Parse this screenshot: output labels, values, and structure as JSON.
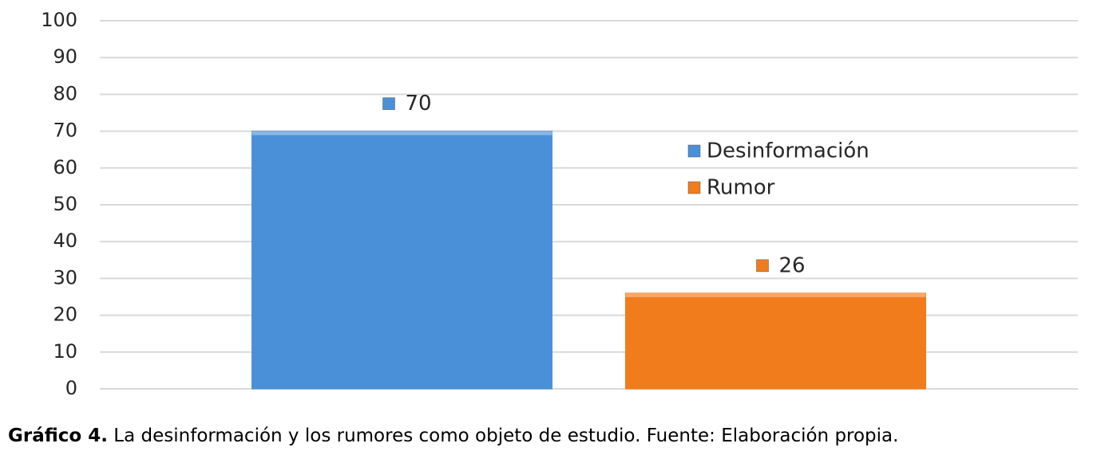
{
  "chart_data": {
    "type": "bar",
    "categories": [
      null
    ],
    "series": [
      {
        "name": "Desinformación",
        "color": "#4a90d9",
        "values": [
          70
        ]
      },
      {
        "name": "Rumor",
        "color": "#f07c1c",
        "values": [
          26
        ]
      }
    ],
    "ylim": [
      0,
      100
    ],
    "yticks": [
      0,
      10,
      20,
      30,
      40,
      50,
      60,
      70,
      80,
      90,
      100
    ],
    "grid": true
  },
  "caption": {
    "label": "Gráfico 4.",
    "text": "La desinformación y los rumores como objeto de estudio. Fuente: Elaboración propia."
  }
}
